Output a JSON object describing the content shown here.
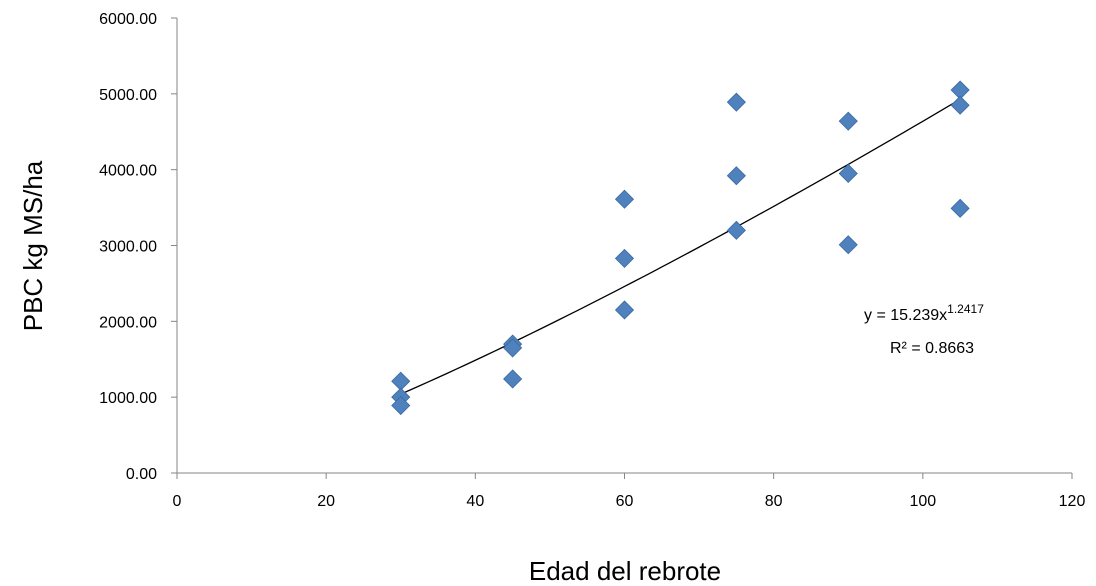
{
  "chart_data": {
    "type": "scatter",
    "title": "",
    "xlabel": "Edad del rebrote",
    "ylabel": "PBC kg  MS/ha",
    "xlim": [
      0,
      120
    ],
    "ylim": [
      0,
      6000
    ],
    "xticks": [
      0,
      20,
      40,
      60,
      80,
      100,
      120
    ],
    "yticks": [
      0,
      1000,
      2000,
      3000,
      4000,
      5000,
      6000
    ],
    "xtick_labels": [
      "0",
      "20",
      "40",
      "60",
      "80",
      "100",
      "120"
    ],
    "ytick_labels": [
      "0.00",
      "1000.00",
      "2000.00",
      "3000.00",
      "4000.00",
      "5000.00",
      "6000.00"
    ],
    "grid": false,
    "marker_color": "#4f81bd",
    "series": [
      {
        "x": [
          30,
          30,
          30,
          45,
          45,
          45,
          60,
          60,
          60,
          75,
          75,
          75,
          90,
          90,
          90,
          105,
          105,
          105
        ],
        "y": [
          1210,
          1000,
          890,
          1700,
          1650,
          1240,
          3610,
          2830,
          2150,
          4890,
          3920,
          3200,
          4640,
          3950,
          3010,
          5050,
          4850,
          3490
        ]
      }
    ],
    "trendline": {
      "type": "power",
      "a": 15.239,
      "b": 1.2417,
      "x_range": [
        30,
        105
      ],
      "equation_prefix": "y = 15.239x",
      "equation_exponent": "1.2417",
      "r2_label": "R² = 0.8663"
    }
  }
}
